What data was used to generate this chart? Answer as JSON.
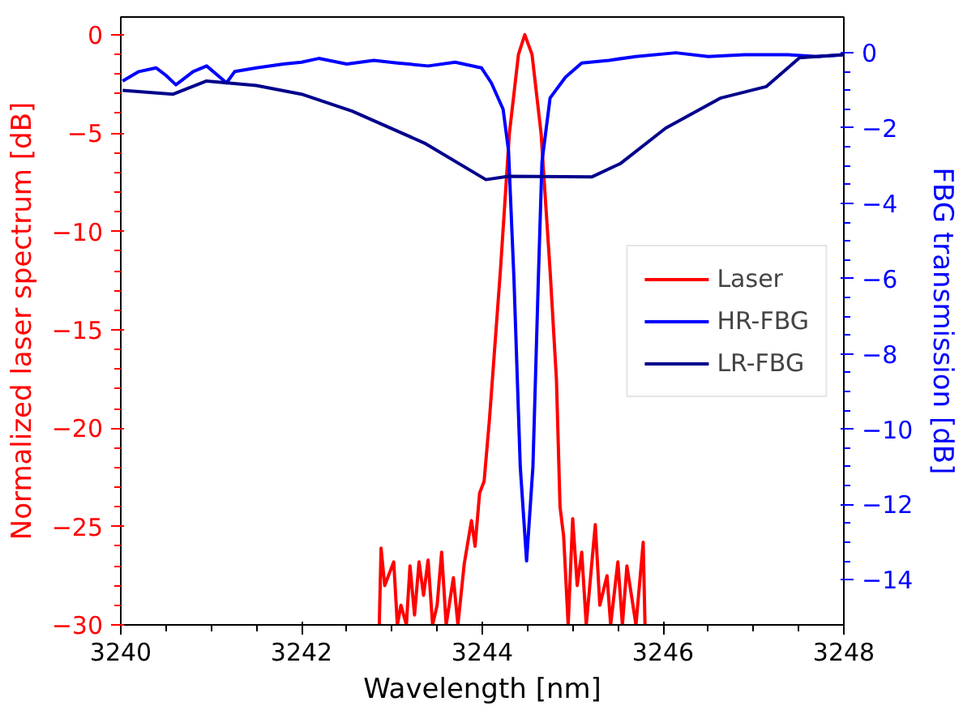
{
  "chart_data": {
    "type": "line",
    "xlabel": "Wavelength [nm]",
    "ylabel": "Normalized laser spectrum [dB]",
    "y2label": "FBG transmission [dB]",
    "xlim": [
      3240,
      3248
    ],
    "xticks": [
      3240,
      3242,
      3244,
      3246,
      3248
    ],
    "ylim": [
      -30,
      0.9
    ],
    "yticks": [
      -30,
      -25,
      -20,
      -15,
      -10,
      -5,
      0
    ],
    "y2lim": [
      -15.2,
      0.95
    ],
    "y2ticks": [
      -14,
      -12,
      -10,
      -8,
      -6,
      -4,
      -2,
      0
    ],
    "grid": false,
    "legend": "right",
    "line_style": "solid",
    "marker": "none",
    "series": [
      {
        "name": "Laser",
        "color": "#ff0000",
        "x": [
          3242.86,
          3242.88,
          3242.92,
          3242.97,
          3243.02,
          3243.06,
          3243.1,
          3243.16,
          3243.2,
          3243.25,
          3243.3,
          3243.35,
          3243.4,
          3243.45,
          3243.5,
          3243.55,
          3243.6,
          3243.68,
          3243.73,
          3243.8,
          3243.88,
          3243.92,
          3243.97,
          3244.02,
          3244.08,
          3244.2,
          3244.3,
          3244.4,
          3244.47,
          3244.55,
          3244.65,
          3244.75,
          3244.82,
          3244.86,
          3244.9,
          3244.95,
          3245.0,
          3245.05,
          3245.1,
          3245.15,
          3245.25,
          3245.3,
          3245.38,
          3245.42,
          3245.5,
          3245.55,
          3245.6,
          3245.7,
          3245.78,
          3245.8
        ],
        "values": [
          -30,
          -26.1,
          -28,
          -27.4,
          -26.8,
          -30,
          -29,
          -30,
          -27.0,
          -29.5,
          -26.8,
          -28.5,
          -26.7,
          -30,
          -29,
          -26.3,
          -30,
          -27.6,
          -30,
          -26.9,
          -24.7,
          -26,
          -23.3,
          -22.7,
          -19.5,
          -12,
          -5,
          -1,
          0,
          -1,
          -5,
          -12,
          -17.5,
          -24,
          -25.5,
          -30,
          -24.6,
          -28,
          -26.3,
          -30,
          -24.9,
          -29,
          -27.5,
          -30,
          -26.8,
          -30,
          -27,
          -30,
          -25.8,
          -30
        ]
      },
      {
        "name": "HR-FBG",
        "color": "#0000ff",
        "axis": "y2",
        "x": [
          3240.02,
          3240.2,
          3240.39,
          3240.5,
          3240.61,
          3240.8,
          3240.95,
          3241.17,
          3241.26,
          3241.5,
          3241.8,
          3242.0,
          3242.19,
          3242.5,
          3242.8,
          3243.06,
          3243.4,
          3243.7,
          3243.99,
          3244.1,
          3244.23,
          3244.29,
          3244.35,
          3244.42,
          3244.49,
          3244.56,
          3244.62,
          3244.66,
          3244.75,
          3244.92,
          3245.1,
          3245.4,
          3245.7,
          3246.14,
          3246.5,
          3246.9,
          3247.38,
          3247.7,
          3248.0
        ],
        "values": [
          -0.75,
          -0.5,
          -0.4,
          -0.6,
          -0.85,
          -0.5,
          -0.35,
          -0.8,
          -0.5,
          -0.4,
          -0.3,
          -0.25,
          -0.15,
          -0.3,
          -0.2,
          -0.27,
          -0.35,
          -0.25,
          -0.4,
          -0.8,
          -1.5,
          -2.6,
          -6,
          -11,
          -13.5,
          -11,
          -6,
          -2.9,
          -1.2,
          -0.65,
          -0.27,
          -0.2,
          -0.1,
          0,
          -0.1,
          -0.05,
          -0.05,
          -0.1,
          -0.05
        ]
      },
      {
        "name": "LR-FBG",
        "color": "#00008b",
        "axis": "y2",
        "x": [
          3240.02,
          3240.58,
          3240.95,
          3241.5,
          3242.0,
          3242.56,
          3243.36,
          3244.04,
          3244.29,
          3245.21,
          3245.53,
          3246.03,
          3246.64,
          3247.14,
          3247.51,
          3248.0
        ],
        "values": [
          -1.0,
          -1.1,
          -0.75,
          -0.87,
          -1.1,
          -1.55,
          -2.4,
          -3.37,
          -3.28,
          -3.3,
          -2.94,
          -2.0,
          -1.2,
          -0.9,
          -0.13,
          -0.05
        ]
      }
    ]
  }
}
